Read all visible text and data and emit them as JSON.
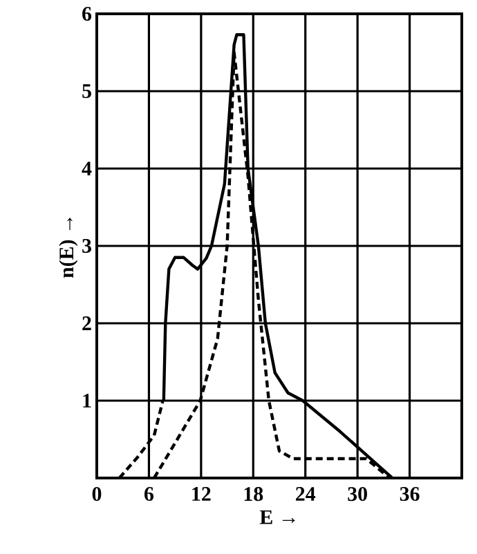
{
  "chart_data": {
    "type": "line",
    "xlabel": "E →",
    "ylabel": "n(E) →",
    "xlim": [
      0,
      42
    ],
    "ylim": [
      0,
      6
    ],
    "xticks": [
      0,
      6,
      12,
      18,
      24,
      30,
      36
    ],
    "yticks": [
      1,
      2,
      3,
      4,
      5,
      6
    ],
    "grid": true,
    "series": [
      {
        "color": "#000000",
        "line_style": "solid",
        "x": [
          7.7,
          7.9,
          8.3,
          9,
          10,
          11,
          11.6,
          12.6,
          13.2,
          14.7,
          15.8,
          16.1,
          16.9,
          17.4,
          18.6,
          19.4,
          20.5,
          22,
          23.7,
          28,
          32,
          34
        ],
        "values": [
          1.0,
          2.0,
          2.7,
          2.85,
          2.85,
          2.75,
          2.7,
          2.84,
          3.0,
          3.8,
          5.6,
          5.73,
          5.73,
          4.0,
          3.0,
          2.0,
          1.36,
          1.1,
          1.0,
          0.6,
          0.2,
          0
        ]
      },
      {
        "color": "#000000",
        "line_style": "dashed",
        "x": [
          6.6,
          9,
          11.9,
          13.9,
          15,
          15.8,
          17.4,
          18.6,
          19.8,
          21,
          22.6,
          31,
          33.7
        ],
        "values": [
          0,
          0.45,
          1.0,
          1.8,
          3.0,
          5.5,
          3.9,
          2.3,
          1.0,
          0.35,
          0.25,
          0.25,
          0
        ]
      },
      {
        "color": "#000000",
        "line_style": "dashed",
        "x": [
          2.6,
          4.7,
          6.6,
          7.6
        ],
        "values": [
          0,
          0.27,
          0.55,
          1.0
        ]
      }
    ]
  }
}
